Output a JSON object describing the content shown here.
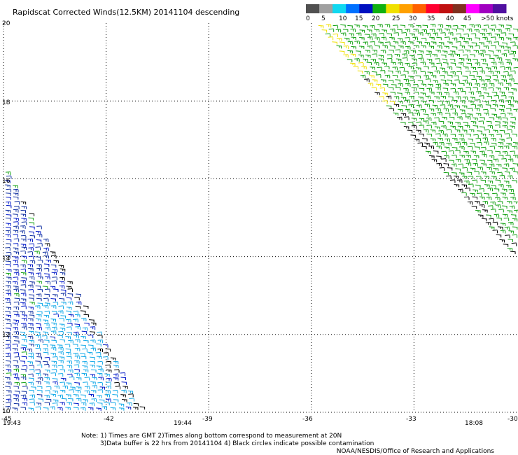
{
  "title": "Rapidscat Corrected Winds(12.5KM) 20141104 descending",
  "legend": {
    "labels": [
      "0",
      "5",
      "10",
      "15",
      "20",
      "25",
      "30",
      "35",
      "40",
      "45",
      ">50 knots"
    ],
    "colors": [
      "#505050",
      "#a0a0a0",
      "#10d8f0",
      "#0070ff",
      "#0010c0",
      "#10b010",
      "#f0e000",
      "#ffa000",
      "#ff6000",
      "#ff0030",
      "#c01010",
      "#803020",
      "#ff00ff",
      "#a000c0",
      "#5010a0"
    ]
  },
  "axes": {
    "x_ticks": [
      "-45",
      "-42",
      "-39",
      "-36",
      "-33",
      "-30"
    ],
    "y_ticks": [
      "20",
      "18",
      "16",
      "14",
      "12",
      "10"
    ]
  },
  "times": {
    "left_start": "19:43",
    "left_end": "19:44",
    "right": "18:08",
    "color": "#800080"
  },
  "notes": {
    "line1": "Note: 1) Times are GMT 2)Times along bottom correspond to measurement at 20N",
    "line2": "3)Data buffer is 22 hrs from 20141104 4) Black circles indicate possible contamination",
    "line3": "NOAA/NESDIS/Office of Research and Applications"
  },
  "map_data": {
    "lon_range": [
      -45,
      -30
    ],
    "lat_range": [
      10,
      20
    ],
    "left_swath_edge": [
      [
        -45,
        16.2
      ],
      [
        -40.9,
        10
      ]
    ],
    "right_swath_edge": [
      [
        -35.9,
        20
      ],
      [
        -30,
        13.9
      ]
    ],
    "colors": {
      "blue": "#0018c8",
      "dark_blue": "#1030a0",
      "cyan": "#10a8e8",
      "green": "#10a010",
      "yellow": "#f0e000",
      "black": "#000000"
    }
  }
}
